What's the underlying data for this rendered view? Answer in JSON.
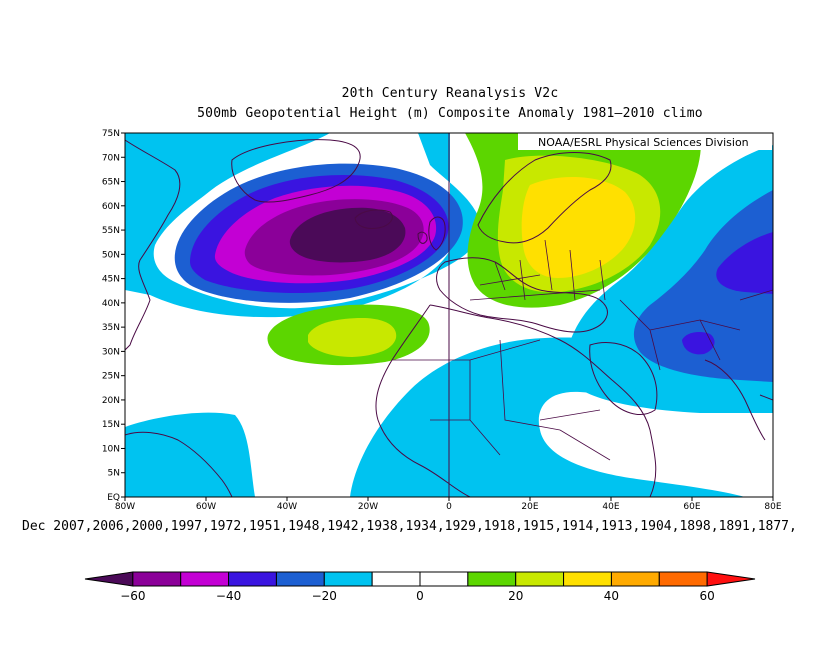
{
  "title": "20th Century Reanalysis V2c",
  "subtitle": "500mb Geopotential Height (m) Composite Anomaly 1981–2010 climo",
  "credit": "NOAA/ESRL Physical Sciences Division",
  "caption": "Dec 2007,2006,2000,1997,1972,1951,1948,1942,1938,1934,1929,1918,1915,1914,1913,1904,1898,1891,1877,",
  "lat_ticks": [
    "75N",
    "70N",
    "65N",
    "60N",
    "55N",
    "50N",
    "45N",
    "40N",
    "35N",
    "30N",
    "25N",
    "20N",
    "15N",
    "10N",
    "5N",
    "EQ"
  ],
  "lon_ticks": [
    "80W",
    "60W",
    "40W",
    "20W",
    "0",
    "20E",
    "40E",
    "60E",
    "80E"
  ],
  "colorbar": {
    "labels": [
      "−60",
      "−40",
      "−20",
      "0",
      "20",
      "40",
      "60"
    ],
    "bins": [
      {
        "value": -70,
        "color": "#4b0a58"
      },
      {
        "value": -55,
        "color": "#8b0099"
      },
      {
        "value": -45,
        "color": "#c300d4"
      },
      {
        "value": -35,
        "color": "#3a14e0"
      },
      {
        "value": -25,
        "color": "#1c5fd2"
      },
      {
        "value": -15,
        "color": "#00c3f0"
      },
      {
        "value": -5,
        "color": "#ffffff"
      },
      {
        "value": 5,
        "color": "#ffffff"
      },
      {
        "value": 15,
        "color": "#5cd600"
      },
      {
        "value": 25,
        "color": "#c8e800"
      },
      {
        "value": 35,
        "color": "#ffe000"
      },
      {
        "value": 45,
        "color": "#ffaa00"
      },
      {
        "value": 55,
        "color": "#ff6a00"
      },
      {
        "value": 70,
        "color": "#ff1010"
      }
    ]
  },
  "colors": {
    "land_outline": "#4a0a45",
    "frame": "#000000"
  },
  "chart_data": {
    "type": "heatmap",
    "xlim": [
      -80,
      80
    ],
    "ylim": [
      0,
      75
    ],
    "units": "m",
    "anomaly_centers": [
      {
        "lon": -25,
        "lat": 55,
        "value": -65
      },
      {
        "lon": 30,
        "lat": 52,
        "value": 35
      },
      {
        "lon": -25,
        "lat": 33,
        "value": 25
      },
      {
        "lon": 68,
        "lat": 48,
        "value": -35
      },
      {
        "lon": 62,
        "lat": 31,
        "value": -35
      },
      {
        "lon": -60,
        "lat": 5,
        "value": -15
      },
      {
        "lon": 20,
        "lat": 5,
        "value": -15
      }
    ]
  }
}
